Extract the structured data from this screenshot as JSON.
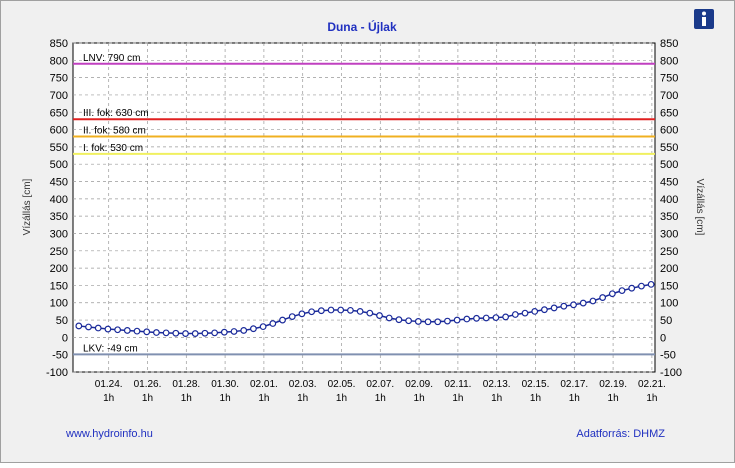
{
  "chart_data": {
    "type": "line",
    "title": "Duna - Újlak",
    "ylabel": "Vízállás [cm]",
    "source_left": "www.hydroinfo.hu",
    "source_right": "Adatforrás: DHMZ",
    "xlim": [
      22.2,
      52.2
    ],
    "ylim": [
      -100,
      850
    ],
    "yticks": [
      -100,
      -50,
      0,
      50,
      100,
      150,
      200,
      250,
      300,
      350,
      400,
      450,
      500,
      550,
      600,
      650,
      700,
      750,
      800,
      850
    ],
    "xticks": [
      {
        "value": 24.04,
        "label": "01.24."
      },
      {
        "value": 26.04,
        "label": "01.26."
      },
      {
        "value": 28.04,
        "label": "01.28."
      },
      {
        "value": 30.04,
        "label": "01.30."
      },
      {
        "value": 32.04,
        "label": "02.01."
      },
      {
        "value": 34.04,
        "label": "02.03."
      },
      {
        "value": 36.04,
        "label": "02.05."
      },
      {
        "value": 38.04,
        "label": "02.07."
      },
      {
        "value": 40.04,
        "label": "02.09."
      },
      {
        "value": 42.04,
        "label": "02.11."
      },
      {
        "value": 44.04,
        "label": "02.13."
      },
      {
        "value": 46.04,
        "label": "02.15."
      },
      {
        "value": 48.04,
        "label": "02.17."
      },
      {
        "value": 50.04,
        "label": "02.19."
      },
      {
        "value": 52.04,
        "label": "02.21."
      }
    ],
    "xtick_hour": "1h",
    "grid": true,
    "reference_lines": [
      {
        "label": "LNV: 790 cm",
        "value": 790,
        "color": "#c040c0"
      },
      {
        "label": "III. fok: 630 cm",
        "value": 630,
        "color": "#e02020"
      },
      {
        "label": "II. fok: 580 cm",
        "value": 580,
        "color": "#f0b020"
      },
      {
        "label": "I. fok: 530 cm",
        "value": 530,
        "color": "#f0f060"
      },
      {
        "label": "LKV: -49 cm",
        "value": -49,
        "color": "#8090b0"
      }
    ],
    "series": [
      {
        "color": "#1a2a9a",
        "x": [
          22.5,
          23,
          23.5,
          24,
          24.5,
          25,
          25.5,
          26,
          26.5,
          27,
          27.5,
          28,
          28.5,
          29,
          29.5,
          30,
          30.5,
          31,
          31.5,
          32,
          32.5,
          33,
          33.5,
          34,
          34.5,
          35,
          35.5,
          36,
          36.5,
          37,
          37.5,
          38,
          38.5,
          39,
          39.5,
          40,
          40.5,
          41,
          41.5,
          42,
          42.5,
          43,
          43.5,
          44,
          44.5,
          45,
          45.5,
          46,
          46.5,
          47,
          47.5,
          48,
          48.5,
          49,
          49.5,
          50,
          50.5,
          51,
          51.5,
          52
        ],
        "values": [
          33,
          30,
          27,
          24,
          22,
          20,
          18,
          16,
          14,
          13,
          12,
          11,
          11,
          12,
          13,
          15,
          17,
          20,
          25,
          31,
          40,
          50,
          60,
          68,
          74,
          77,
          79,
          79,
          78,
          75,
          70,
          63,
          56,
          51,
          48,
          46,
          45,
          45,
          47,
          50,
          53,
          55,
          56,
          57,
          59,
          66,
          70,
          75,
          80,
          85,
          90,
          94,
          99,
          105,
          115,
          126,
          135,
          142,
          148,
          153
        ]
      }
    ]
  }
}
